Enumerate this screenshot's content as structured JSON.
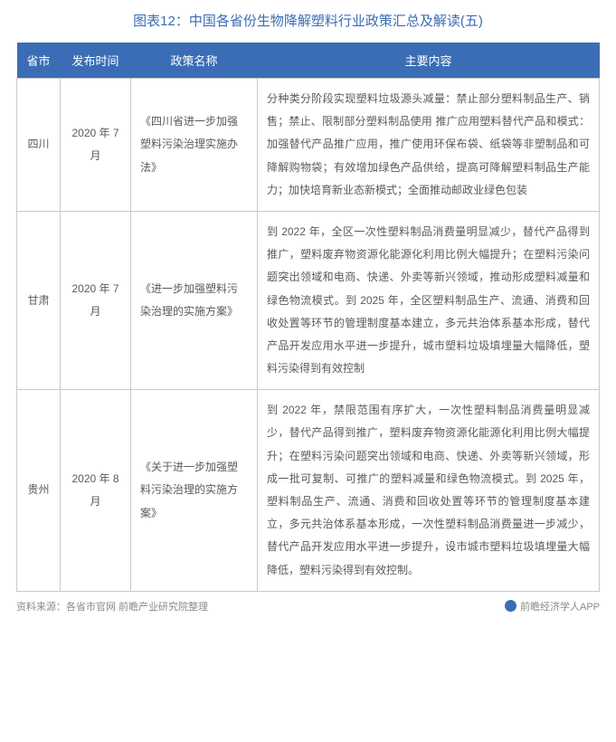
{
  "title": "图表12：中国各省份生物降解塑料行业政策汇总及解读(五)",
  "columns": [
    "省市",
    "发布时间",
    "政策名称",
    "主要内容"
  ],
  "rows": [
    {
      "province": "四川",
      "date": "2020 年 7 月",
      "policy": "《四川省进一步加强塑料污染治理实施办法》",
      "content": "分种类分阶段实现塑料垃圾源头减量：禁止部分塑料制品生产、销售；禁止、限制部分塑料制品使用\n推广应用塑料替代产品和模式：加强替代产品推广应用，推广使用环保布袋、纸袋等非塑制品和可降解购物袋；有效增加绿色产品供给，提高可降解塑料制品生产能力；加快培育新业态新模式；全面推动邮政业绿色包装"
    },
    {
      "province": "甘肃",
      "date": "2020 年 7 月",
      "policy": "《进一步加强塑料污染治理的实施方案》",
      "content": "到 2022 年，全区一次性塑料制品消费量明显减少，替代产品得到推广，塑料废弃物资源化能源化利用比例大幅提升；在塑料污染问题突出领域和电商、快递、外卖等新兴领域，推动形成塑料减量和绿色物流模式。到 2025 年，全区塑料制品生产、流通、消费和回收处置等环节的管理制度基本建立，多元共治体系基本形成，替代产品开发应用水平进一步提升，城市塑料垃圾填埋量大幅降低，塑料污染得到有效控制"
    },
    {
      "province": "贵州",
      "date": "2020 年 8 月",
      "policy": "《关于进一步加强塑料污染治理的实施方案》",
      "content": "到 2022 年，禁限范围有序扩大，一次性塑料制品消费量明显减少，替代产品得到推广，塑料废弃物资源化能源化利用比例大幅提升；在塑料污染问题突出领域和电商、快递、外卖等新兴领域，形成一批可复制、可推广的塑料减量和绿色物流模式。到 2025 年，塑料制品生产、流通、消费和回收处置等环节的管理制度基本建立，多元共治体系基本形成，一次性塑料制品消费量进一步减少，替代产品开发应用水平进一步提升，设市城市塑料垃圾填埋量大幅降低，塑料污染得到有效控制。"
    }
  ],
  "footer_left": "资料来源：各省市官网 前瞻产业研究院整理",
  "footer_right": "前瞻经济学人APP",
  "colors": {
    "header_bg": "#3a6db5",
    "title": "#3a6db5",
    "border": "#c9c9c9",
    "text": "#5a5a5a",
    "footer": "#8a8a8a"
  }
}
